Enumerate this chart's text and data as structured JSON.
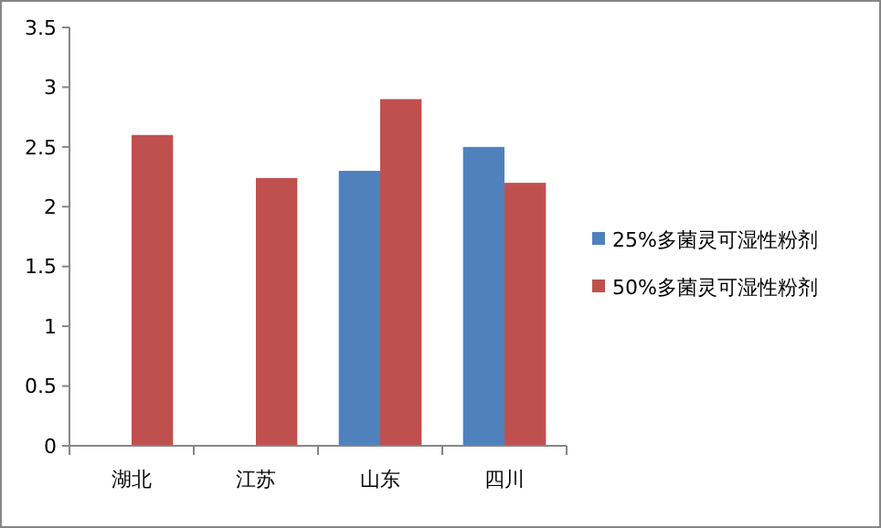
{
  "chart_data": {
    "type": "bar",
    "categories": [
      "湖北",
      "江苏",
      "山东",
      "四川"
    ],
    "series": [
      {
        "name": "25%多菌灵可湿性粉剂",
        "color": "#4f81bd",
        "values": [
          null,
          null,
          2.3,
          2.5
        ]
      },
      {
        "name": "50%多菌灵可湿性粉剂",
        "color": "#c0504d",
        "values": [
          2.6,
          2.24,
          2.9,
          2.2
        ]
      }
    ],
    "ylim": [
      0,
      3.5
    ],
    "yticks": [
      {
        "value": 0,
        "label": "0"
      },
      {
        "value": 0.5,
        "label": "0.5"
      },
      {
        "value": 1,
        "label": "1"
      },
      {
        "value": 1.5,
        "label": "1.5"
      },
      {
        "value": 2,
        "label": "2"
      },
      {
        "value": 2.5,
        "label": "2.5"
      },
      {
        "value": 3,
        "label": "3"
      },
      {
        "value": 3.5,
        "label": "3.5"
      }
    ],
    "grid": false,
    "legend": "right"
  }
}
